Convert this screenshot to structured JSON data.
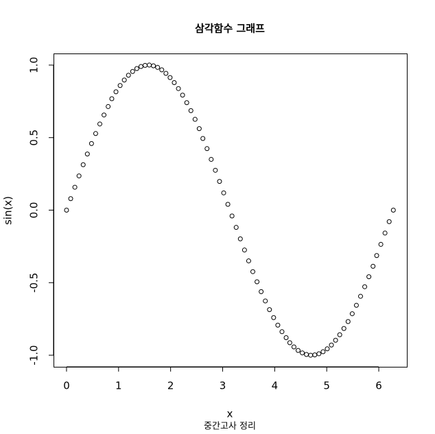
{
  "chart_data": {
    "type": "scatter",
    "title": "삼각함수 그래프",
    "xlabel": "x",
    "subtitle": "중간고사 정리",
    "ylabel": "sin(x)",
    "x": [
      0,
      0.08,
      0.16,
      0.24,
      0.32,
      0.4,
      0.48,
      0.56,
      0.64,
      0.72,
      0.8,
      0.87,
      0.95,
      1.03,
      1.11,
      1.19,
      1.27,
      1.35,
      1.43,
      1.51,
      1.59,
      1.67,
      1.75,
      1.83,
      1.91,
      1.99,
      2.07,
      2.15,
      2.23,
      2.31,
      2.39,
      2.47,
      2.55,
      2.62,
      2.7,
      2.78,
      2.86,
      2.94,
      3.02,
      3.1,
      3.18,
      3.26,
      3.34,
      3.42,
      3.5,
      3.58,
      3.66,
      3.74,
      3.82,
      3.9,
      3.98,
      4.06,
      4.14,
      4.22,
      4.29,
      4.37,
      4.45,
      4.53,
      4.61,
      4.69,
      4.77,
      4.85,
      4.93,
      5.01,
      5.09,
      5.17,
      5.25,
      5.33,
      5.41,
      5.49,
      5.57,
      5.65,
      5.73,
      5.81,
      5.89,
      5.96,
      6.04,
      6.12,
      6.2,
      6.28
    ],
    "values": [
      0,
      0.079,
      0.158,
      0.236,
      0.313,
      0.387,
      0.459,
      0.528,
      0.594,
      0.656,
      0.714,
      0.768,
      0.816,
      0.859,
      0.897,
      0.93,
      0.956,
      0.976,
      0.99,
      0.998,
      1.0,
      0.995,
      0.984,
      0.967,
      0.943,
      0.914,
      0.879,
      0.838,
      0.793,
      0.741,
      0.686,
      0.626,
      0.562,
      0.494,
      0.424,
      0.35,
      0.275,
      0.198,
      0.119,
      0.04,
      -0.04,
      -0.119,
      -0.198,
      -0.275,
      -0.35,
      -0.424,
      -0.494,
      -0.562,
      -0.626,
      -0.686,
      -0.741,
      -0.793,
      -0.838,
      -0.879,
      -0.914,
      -0.943,
      -0.967,
      -0.984,
      -0.995,
      -1.0,
      -0.998,
      -0.99,
      -0.976,
      -0.956,
      -0.93,
      -0.897,
      -0.859,
      -0.816,
      -0.768,
      -0.714,
      -0.656,
      -0.594,
      -0.528,
      -0.459,
      -0.387,
      -0.313,
      -0.236,
      -0.158,
      -0.079,
      0
    ],
    "color": "#000000",
    "xlim": [
      -0.25,
      6.54
    ],
    "xticks": [
      0,
      1,
      2,
      3,
      4,
      5,
      6
    ],
    "ylim": [
      -1.08,
      1.08
    ],
    "yticks": [
      {
        "value": -1,
        "label": "-1.0"
      },
      -0.5,
      {
        "value": 0,
        "label": "0.0"
      },
      0.5,
      {
        "value": 1,
        "label": "1.0"
      }
    ]
  }
}
